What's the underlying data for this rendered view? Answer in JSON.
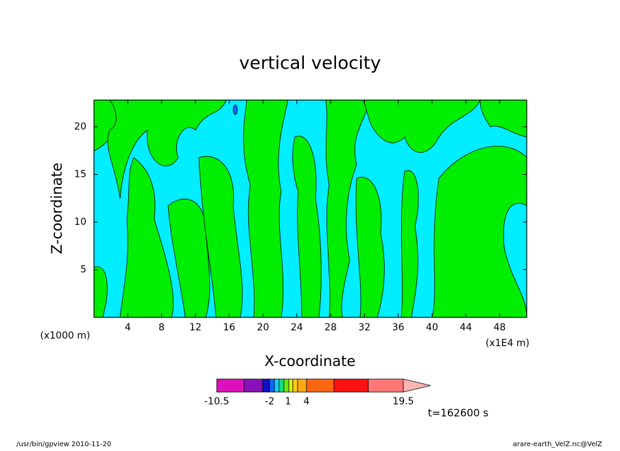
{
  "chart_data": {
    "type": "contour",
    "title": "vertical velocity",
    "x_label": "X-coordinate",
    "y_label": "Z-coordinate",
    "x_unit": "(x1000 m)",
    "x_scale_note": "(x1E4 m)",
    "xlim": [
      0,
      51.2
    ],
    "xticks": [
      4,
      8,
      12,
      16,
      20,
      24,
      28,
      32,
      36,
      40,
      44,
      48
    ],
    "ylim": [
      0,
      22.8
    ],
    "yticks": [
      5,
      10,
      15,
      20
    ],
    "colorbar": {
      "ticks": [
        -10.5,
        -2,
        1,
        4,
        19.5
      ],
      "colors": [
        "#dd11bb",
        "#8811bb",
        "#1111cc",
        "#1166ff",
        "#11ccee",
        "#11dd88",
        "#66ee11",
        "#ddee11",
        "#ffcc11",
        "#ffaa11",
        "#ff6611",
        "#ff1111",
        "#ff7777",
        "#ffb3b3"
      ]
    },
    "time_label": "t=162600 s",
    "footer_left": "/usr/bin/gpview   2010-11-20",
    "footer_right": "arare-earth_VelZ.nc@VelZ"
  }
}
